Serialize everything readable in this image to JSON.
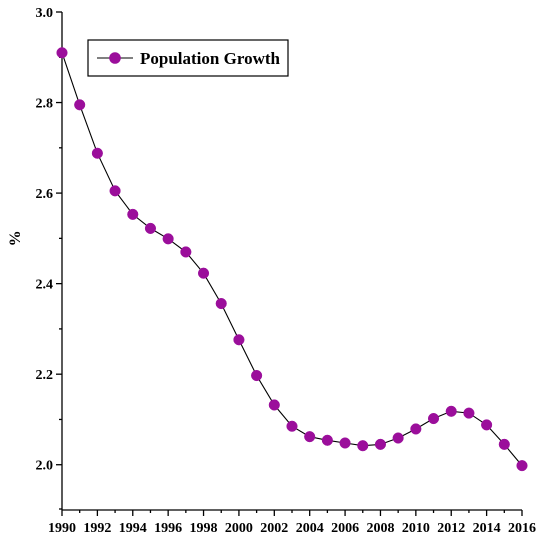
{
  "chart_data": {
    "type": "line",
    "title": "",
    "xlabel": "",
    "ylabel": "%",
    "x": [
      1990,
      1991,
      1992,
      1993,
      1994,
      1995,
      1996,
      1997,
      1998,
      1999,
      2000,
      2001,
      2002,
      2003,
      2004,
      2005,
      2006,
      2007,
      2008,
      2009,
      2010,
      2011,
      2012,
      2013,
      2014,
      2015,
      2016
    ],
    "series": [
      {
        "name": "Population Growth",
        "color": "#9b0e9b",
        "values": [
          2.91,
          2.795,
          2.688,
          2.605,
          2.553,
          2.522,
          2.499,
          2.47,
          2.423,
          2.356,
          2.276,
          2.197,
          2.132,
          2.085,
          2.062,
          2.054,
          2.048,
          2.042,
          2.045,
          2.059,
          2.079,
          2.102,
          2.118,
          2.114,
          2.088,
          2.045,
          1.998
        ]
      }
    ],
    "xlim": [
      1990,
      2016
    ],
    "ylim": [
      1.9,
      3.0
    ],
    "x_ticks": [
      1990,
      1992,
      1994,
      1996,
      1998,
      2000,
      2002,
      2004,
      2006,
      2008,
      2010,
      2012,
      2014,
      2016
    ],
    "x_tick_labels": [
      "1990",
      "1992",
      "1994",
      "1996",
      "1998",
      "2000",
      "2002",
      "2004",
      "2006",
      "2008",
      "2010",
      "2012",
      "2014",
      "2016"
    ],
    "y_ticks": [
      2.0,
      2.2,
      2.4,
      2.6,
      2.8,
      3.0
    ],
    "y_tick_labels": [
      "2.0",
      "2.2",
      "2.4",
      "2.6",
      "2.8",
      "3.0"
    ],
    "grid": false,
    "legend_position": "top-left"
  }
}
